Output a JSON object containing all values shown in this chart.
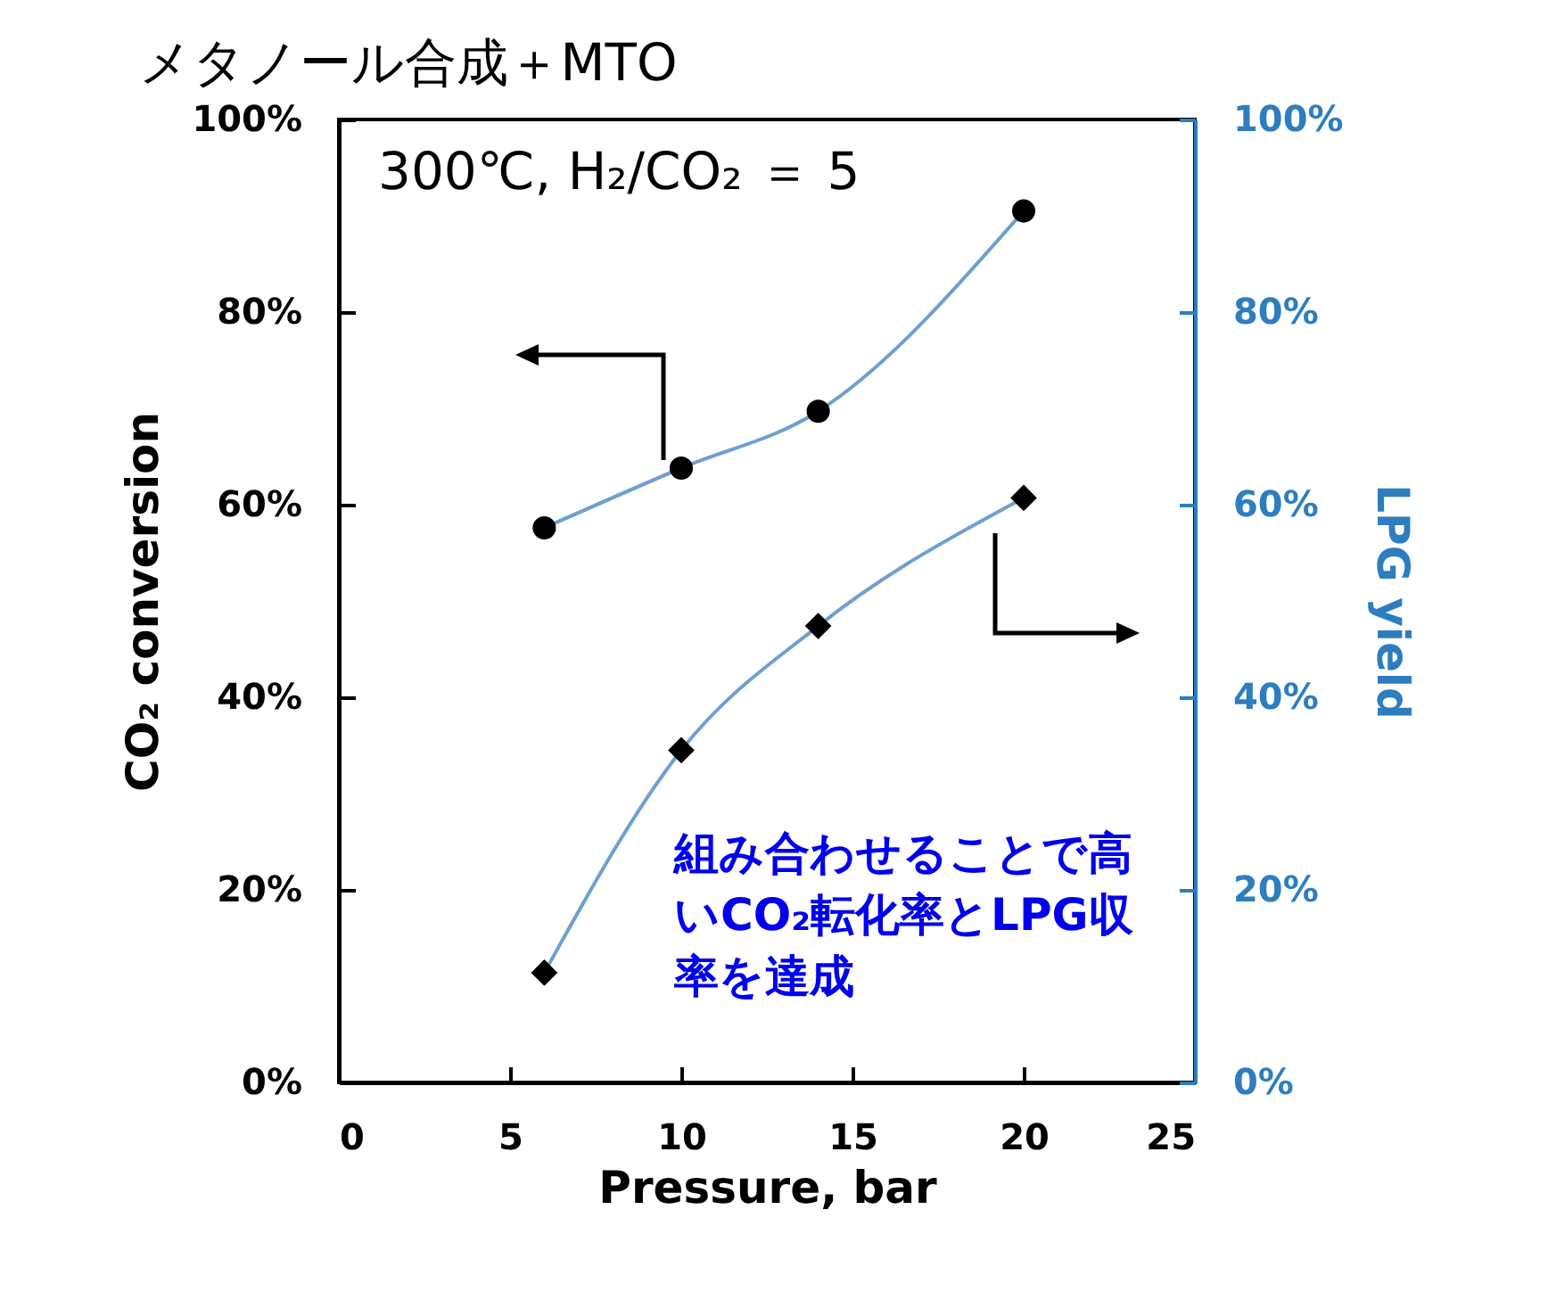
{
  "chart_data": {
    "type": "line",
    "title": "メタノール合成＋MTO",
    "xlabel": "Pressure, bar",
    "ylabel": "CO₂ conversion",
    "y2label": "LPG yield",
    "annotations": [
      "300℃, H₂/CO₂ ＝ 5",
      "組み合わせることで高いCO₂転化率とLPG収率を達成"
    ],
    "x": [
      6,
      10,
      14,
      20
    ],
    "series": [
      {
        "color": "#6f9fd0",
        "marker": "circle",
        "values": [
          57.6,
          63.8,
          69.7,
          90.5
        ]
      },
      {
        "color": "#6f9fd0",
        "marker": "diamond",
        "axis": "y2",
        "values": [
          11.4,
          34.5,
          47.4,
          60.7
        ]
      }
    ],
    "xlim": [
      0,
      25
    ],
    "xticks": [
      0,
      5,
      10,
      15,
      20,
      25
    ],
    "ylim": [
      0,
      100
    ],
    "yticks": [
      {
        "value": 0,
        "label": "0%"
      },
      {
        "value": 20,
        "label": "20%"
      },
      {
        "value": 40,
        "label": "40%"
      },
      {
        "value": 60,
        "label": "60%"
      },
      {
        "value": 80,
        "label": "80%"
      },
      {
        "value": 100,
        "label": "100%"
      }
    ],
    "y2lim": [
      0,
      100
    ],
    "y2ticks": [
      {
        "value": 0,
        "label": "0%"
      },
      {
        "value": 20,
        "label": "20%"
      },
      {
        "value": 40,
        "label": "40%"
      },
      {
        "value": 60,
        "label": "60%"
      },
      {
        "value": 80,
        "label": "80%"
      },
      {
        "value": 100,
        "label": "100%"
      }
    ],
    "grid": false
  }
}
